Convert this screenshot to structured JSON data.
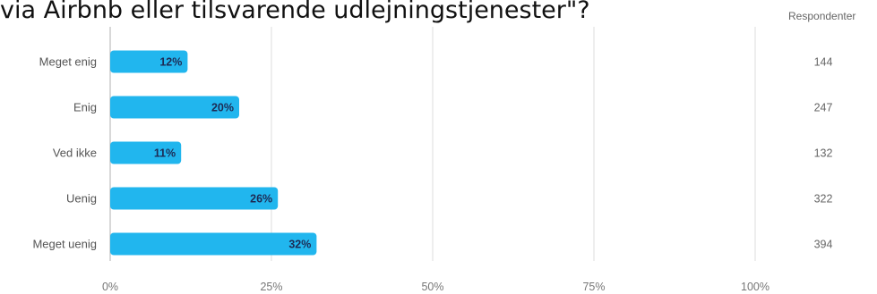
{
  "chart_data": {
    "type": "bar",
    "orientation": "horizontal",
    "title": "via Airbnb eller tilsvarende udlejningstjenester\"?",
    "categories": [
      "Meget enig",
      "Enig",
      "Ved ikke",
      "Uenig",
      "Meget uenig"
    ],
    "values": [
      12,
      20,
      11,
      26,
      32
    ],
    "value_labels": [
      "12%",
      "20%",
      "11%",
      "26%",
      "32%"
    ],
    "xlim": [
      0,
      100
    ],
    "ticks": [
      0,
      25,
      50,
      75,
      100
    ],
    "tick_labels": [
      "0%",
      "25%",
      "50%",
      "75%",
      "100%"
    ],
    "grid": true,
    "bar_color": "#21b6ee",
    "respondents_header": "Respondenter",
    "respondents": [
      "144",
      "247",
      "132",
      "322",
      "394"
    ]
  }
}
